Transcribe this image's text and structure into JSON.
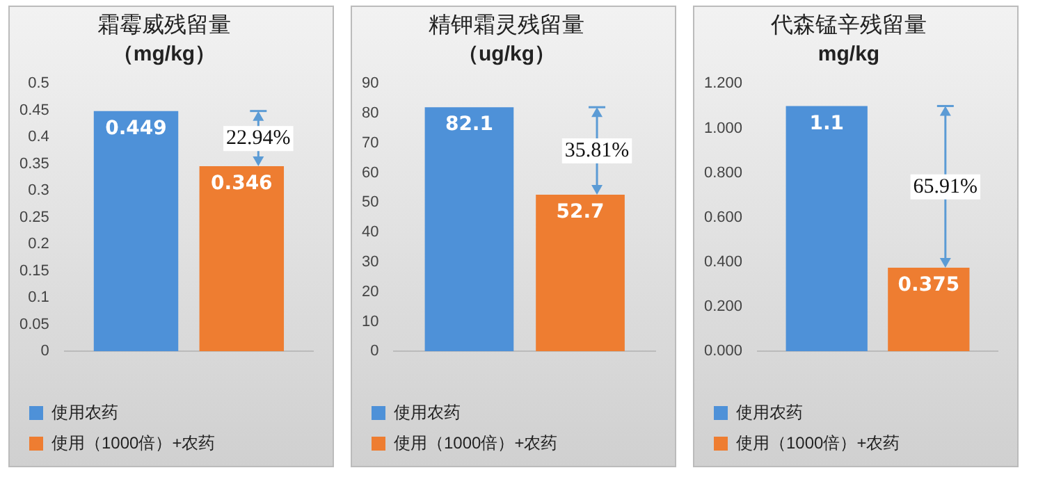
{
  "chart_data": [
    {
      "type": "bar",
      "title": "霜霉威残留量",
      "subtitle": "（mg/kg）",
      "categories": [
        null
      ],
      "series": [
        {
          "name": "使用农药",
          "color": "#4e91d8",
          "values": [
            0.449
          ]
        },
        {
          "name": "使用（1000倍）+农药",
          "color": "#ee7d31",
          "values": [
            0.346
          ]
        }
      ],
      "ylim": [
        0,
        0.5
      ],
      "yticks": [
        0,
        0.05,
        0.1,
        0.15,
        0.2,
        0.25,
        0.3,
        0.35,
        0.4,
        0.45,
        0.5
      ],
      "data_labels": true,
      "legend": "bottom",
      "annotations": [
        "22.94%"
      ]
    },
    {
      "type": "bar",
      "title": "精钾霜灵残留量",
      "subtitle": "（ug/kg）",
      "categories": [
        null
      ],
      "series": [
        {
          "name": "使用农药",
          "color": "#4e91d8",
          "values": [
            82.1
          ]
        },
        {
          "name": "使用（1000倍）+农药",
          "color": "#ee7d31",
          "values": [
            52.7
          ]
        }
      ],
      "ylim": [
        0,
        90
      ],
      "yticks": [
        0,
        10,
        20,
        30,
        40,
        50,
        60,
        70,
        80,
        90
      ],
      "data_labels": true,
      "legend": "bottom",
      "annotations": [
        "35.81%"
      ]
    },
    {
      "type": "bar",
      "title": "代森锰辛残留量",
      "subtitle": "mg/kg",
      "categories": [
        null
      ],
      "series": [
        {
          "name": "使用农药",
          "color": "#4e91d8",
          "values": [
            1.1
          ]
        },
        {
          "name": "使用（1000倍）+农药",
          "color": "#ee7d31",
          "values": [
            0.375
          ]
        }
      ],
      "ylim": [
        0,
        1.2
      ],
      "yticks": [
        {
          "value": 0,
          "label": "0.000"
        },
        {
          "value": 0.2,
          "label": "0.200"
        },
        {
          "value": 0.4,
          "label": "0.400"
        },
        {
          "value": 0.6,
          "label": "0.600"
        },
        {
          "value": 0.8,
          "label": "0.800"
        },
        {
          "value": 1,
          "label": "1.000"
        },
        {
          "value": 1.2,
          "label": "1.200"
        }
      ],
      "data_labels": true,
      "legend": "bottom",
      "annotations": [
        "65.91%"
      ]
    }
  ]
}
